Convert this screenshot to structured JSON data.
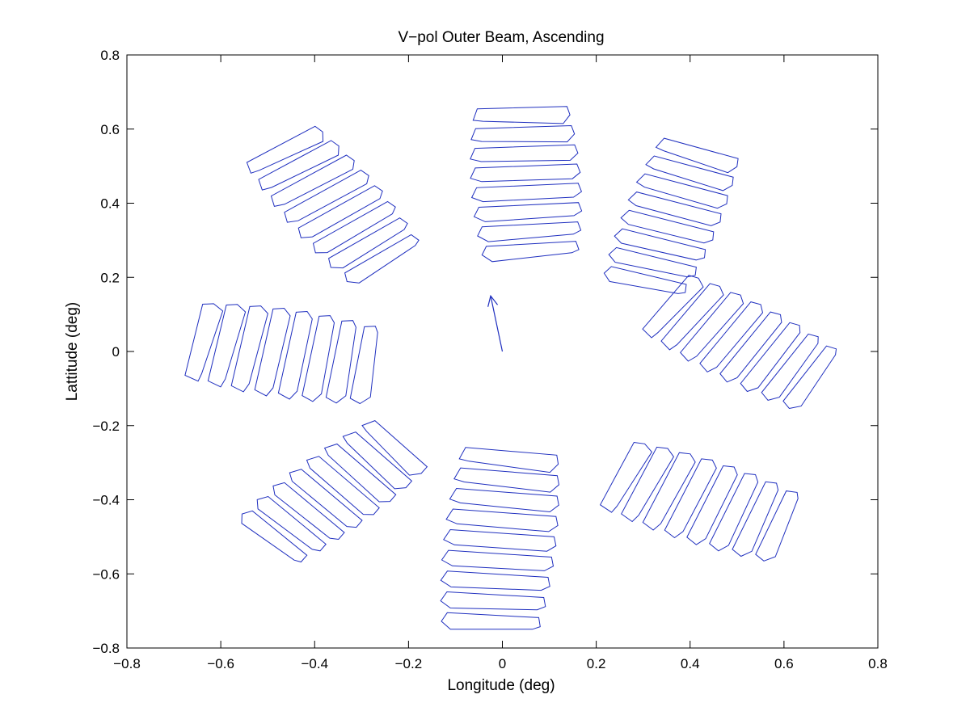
{
  "chart_data": {
    "type": "line",
    "title": "V−pol Outer Beam, Ascending",
    "xlabel": "Longitude (deg)",
    "ylabel": "Lattitude (deg)",
    "xlim": [
      -0.8,
      0.8
    ],
    "ylim": [
      -0.8,
      0.8
    ],
    "xticks": [
      -0.8,
      -0.6,
      -0.4,
      -0.2,
      0,
      0.2,
      0.4,
      0.6,
      0.8
    ],
    "yticks": [
      -0.8,
      -0.6,
      -0.4,
      -0.2,
      0,
      0.2,
      0.4,
      0.6,
      0.8
    ],
    "xtick_labels": [
      "−0.8",
      "−0.6",
      "−0.4",
      "−0.2",
      "0",
      "0.2",
      "0.4",
      "0.6",
      "0.8"
    ],
    "ytick_labels": [
      "−0.8",
      "−0.6",
      "−0.4",
      "−0.2",
      "0",
      "0.2",
      "0.4",
      "0.6",
      "0.8"
    ],
    "grid": false,
    "line_color": "#1f2fbf",
    "arrow": {
      "from": [
        0.0,
        0.0
      ],
      "to": [
        -0.025,
        0.15
      ]
    },
    "clusters": [
      {
        "name": "top",
        "center": [
          0.05,
          0.455
        ],
        "angle": 3,
        "count": 8,
        "spacing": 0.052,
        "length": 0.235,
        "width": 0.038,
        "curve": 0.075
      },
      {
        "name": "upper-left",
        "center": [
          -0.36,
          0.395
        ],
        "angle": 35,
        "count": 8,
        "spacing": 0.051,
        "length": 0.215,
        "width": 0.036,
        "curve": 0.07
      },
      {
        "name": "upper-right",
        "center": [
          0.36,
          0.36
        ],
        "angle": -18,
        "count": 8,
        "spacing": 0.051,
        "length": 0.205,
        "width": 0.036,
        "curve": 0.07
      },
      {
        "name": "left",
        "center": [
          -0.465,
          -0.005
        ],
        "angle": 80,
        "count": 8,
        "spacing": 0.05,
        "length": 0.24,
        "width": 0.038,
        "curve": 0.075
      },
      {
        "name": "right",
        "center": [
          0.51,
          0.025
        ],
        "angle": 57,
        "count": 8,
        "spacing": 0.05,
        "length": 0.215,
        "width": 0.036,
        "curve": 0.07
      },
      {
        "name": "lower-left",
        "center": [
          -0.36,
          -0.38
        ],
        "angle": -47,
        "count": 8,
        "spacing": 0.05,
        "length": 0.205,
        "width": 0.036,
        "curve": 0.07
      },
      {
        "name": "lower-right",
        "center": [
          0.425,
          -0.405
        ],
        "angle": 68,
        "count": 8,
        "spacing": 0.05,
        "length": 0.225,
        "width": 0.038,
        "curve": 0.07
      },
      {
        "name": "bottom",
        "center": [
          -0.005,
          -0.51
        ],
        "angle": -5,
        "count": 9,
        "spacing": 0.055,
        "length": 0.24,
        "width": 0.04,
        "curve": 0.075
      }
    ]
  }
}
